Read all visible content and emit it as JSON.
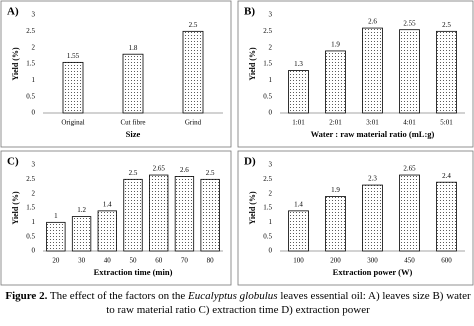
{
  "chart_data": [
    {
      "type": "bar",
      "panel_label": "A)",
      "x_label": "Size",
      "y_label": "Yield (%)",
      "categories": [
        "Original",
        "Cut fibre",
        "Grind"
      ],
      "values": [
        1.55,
        1.8,
        2.5
      ],
      "ylim": [
        0,
        3
      ],
      "yticks": [
        0,
        0.5,
        1,
        1.5,
        2,
        2.5,
        3
      ],
      "grid": false,
      "color": "#000000"
    },
    {
      "type": "bar",
      "panel_label": "B)",
      "x_label": "Water : raw material ratio (mL:g)",
      "y_label": "Yield (%)",
      "categories": [
        "1:01",
        "2:01",
        "3:01",
        "4:01",
        "5:01"
      ],
      "values": [
        1.3,
        1.9,
        2.6,
        2.55,
        2.5
      ],
      "ylim": [
        0,
        3
      ],
      "yticks": [
        0,
        0.5,
        1,
        1.5,
        2,
        2.5,
        3
      ],
      "grid": false,
      "color": "#000000"
    },
    {
      "type": "bar",
      "panel_label": "C)",
      "x_label": "Extraction time (min)",
      "y_label": "Yield (%)",
      "categories": [
        "20",
        "30",
        "40",
        "50",
        "60",
        "70",
        "80"
      ],
      "values": [
        1,
        1.2,
        1.4,
        2.5,
        2.65,
        2.6,
        2.5
      ],
      "ylim": [
        0,
        3
      ],
      "yticks": [
        0,
        0.5,
        1,
        1.5,
        2,
        2.5,
        3
      ],
      "grid": false,
      "color": "#000000"
    },
    {
      "type": "bar",
      "panel_label": "D)",
      "x_label": "Extraction power (W)",
      "y_label": "Yield (%)",
      "categories": [
        "100",
        "200",
        "300",
        "450",
        "600"
      ],
      "values": [
        1.4,
        1.9,
        2.3,
        2.65,
        2.4
      ],
      "ylim": [
        0,
        3
      ],
      "yticks": [
        0,
        0.5,
        1,
        1.5,
        2,
        2.5,
        3
      ],
      "grid": false,
      "color": "#000000"
    }
  ],
  "caption": {
    "label": "Figure 2.",
    "text_before": "The effect of the factors on the",
    "italic": "Eucalyptus globulus",
    "text_after": "leaves essential oil: A) leaves size  B) water to raw material ratio  C) extraction time  D) extraction power"
  }
}
